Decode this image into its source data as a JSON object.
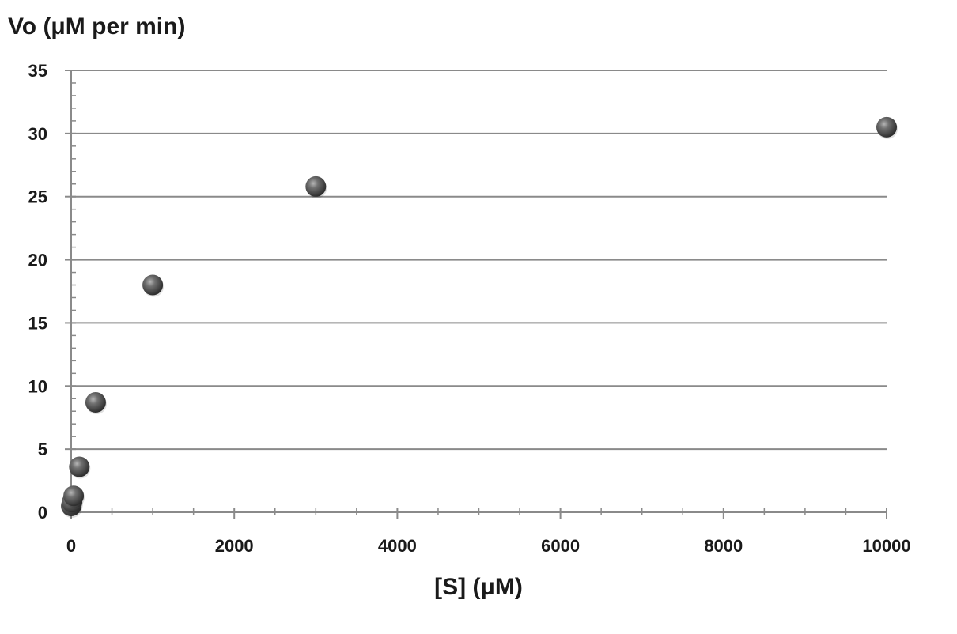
{
  "chart_data": {
    "type": "scatter",
    "title": "",
    "xlabel": "[S] (μM)",
    "ylabel": "Vo (μM per min)",
    "xlim": [
      0,
      10000
    ],
    "ylim": [
      0,
      35
    ],
    "x_ticks": [
      0,
      2000,
      4000,
      6000,
      8000,
      10000
    ],
    "y_ticks": [
      0,
      5,
      10,
      15,
      20,
      25,
      30,
      35
    ],
    "x_tick_labels": [
      "0",
      "2000",
      "4000",
      "6000",
      "8000",
      "10000"
    ],
    "y_tick_labels": [
      "0",
      "5",
      "10",
      "15",
      "20",
      "25",
      "30",
      "35"
    ],
    "grid": "horizontal major gridlines",
    "legend": "none",
    "marker_color": "#5a5a5a",
    "series": [
      {
        "x": [
          0,
          10,
          30,
          100,
          300,
          1000,
          3000,
          10000
        ],
        "y": [
          0.5,
          0.8,
          1.3,
          3.6,
          8.7,
          18.0,
          25.8,
          30.5
        ]
      }
    ]
  }
}
